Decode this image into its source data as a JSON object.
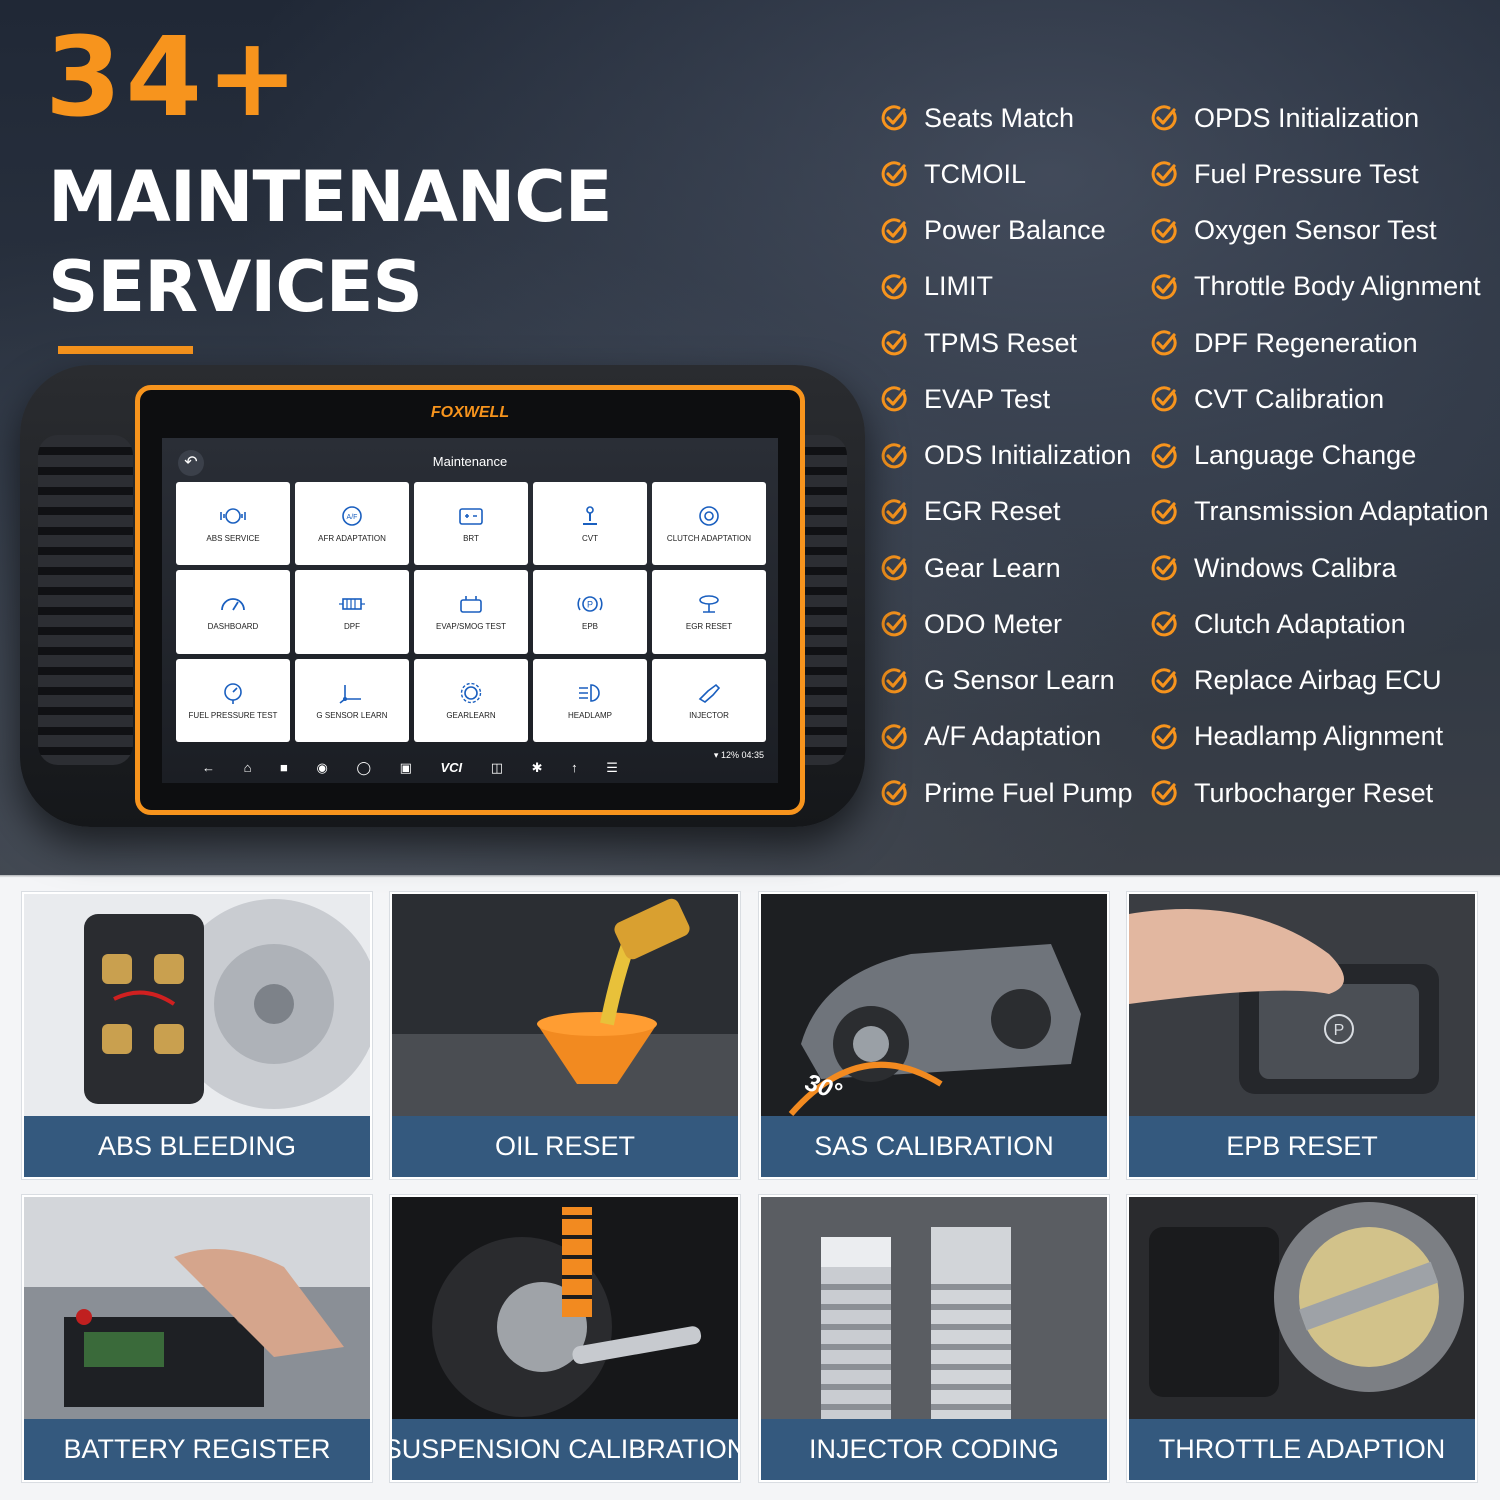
{
  "headline": {
    "count": "34+",
    "line1": "MAINTENANCE",
    "line2": "SERVICES"
  },
  "accent_color": "#f7941d",
  "services_left": [
    "Seats Match",
    "TCMOIL",
    "Power Balance",
    "LIMIT",
    "TPMS Reset",
    "EVAP Test",
    "ODS Initialization",
    "EGR Reset",
    "Gear Learn",
    "ODO Meter",
    "G Sensor Learn",
    "A/F Adaptation",
    "Prime Fuel Pump"
  ],
  "services_right": [
    "OPDS Initialization",
    "Fuel Pressure Test",
    "Oxygen Sensor Test",
    "Throttle Body Alignment",
    "DPF Regeneration",
    "CVT Calibration",
    "Language Change",
    "Transmission Adaptation",
    "Windows Calibra",
    "Clutch Adaptation",
    "Replace Airbag ECU",
    "Headlamp Alignment",
    "Turbocharger Reset"
  ],
  "device": {
    "brand": "FOXWELL",
    "screen_title": "Maintenance",
    "tiles": [
      {
        "label": "ABS SERVICE",
        "icon": "abs-icon"
      },
      {
        "label": "AFR ADAPTATION",
        "icon": "afr-icon"
      },
      {
        "label": "BRT",
        "icon": "battery-icon"
      },
      {
        "label": "CVT",
        "icon": "gear-shift-icon"
      },
      {
        "label": "CLUTCH ADAPTATION",
        "icon": "clutch-icon"
      },
      {
        "label": "DASHBOARD",
        "icon": "gauge-icon"
      },
      {
        "label": "DPF",
        "icon": "filter-icon"
      },
      {
        "label": "EVAP/SMOG TEST",
        "icon": "evap-icon"
      },
      {
        "label": "EPB",
        "icon": "parking-brake-icon"
      },
      {
        "label": "EGR RESET",
        "icon": "egr-icon"
      },
      {
        "label": "FUEL PRESSURE TEST",
        "icon": "pressure-gauge-icon"
      },
      {
        "label": "G SENSOR LEARN",
        "icon": "axis-icon"
      },
      {
        "label": "GEARLEARN",
        "icon": "gear-icon"
      },
      {
        "label": "HEADLAMP",
        "icon": "headlamp-icon"
      },
      {
        "label": "INJECTOR",
        "icon": "injector-icon"
      }
    ],
    "status_time": "04:35",
    "status_battery": "12%",
    "nav_vci": "VCI"
  },
  "cards": [
    {
      "caption": "ABS BLEEDING",
      "icon": "brake-disc-icon"
    },
    {
      "caption": "OIL RESET",
      "icon": "oil-funnel-icon"
    },
    {
      "caption": "SAS CALIBRATION",
      "icon": "car-steering-icon",
      "angle_label": "30°"
    },
    {
      "caption": "EPB RESET",
      "icon": "parking-button-icon"
    },
    {
      "caption": "BATTERY REGISTER",
      "icon": "car-battery-icon"
    },
    {
      "caption": "SUSPENSION CALIBRATION",
      "icon": "suspension-icon"
    },
    {
      "caption": "INJECTOR CODING",
      "icon": "spark-plug-icon"
    },
    {
      "caption": "THROTTLE ADAPTION",
      "icon": "throttle-body-icon"
    }
  ]
}
